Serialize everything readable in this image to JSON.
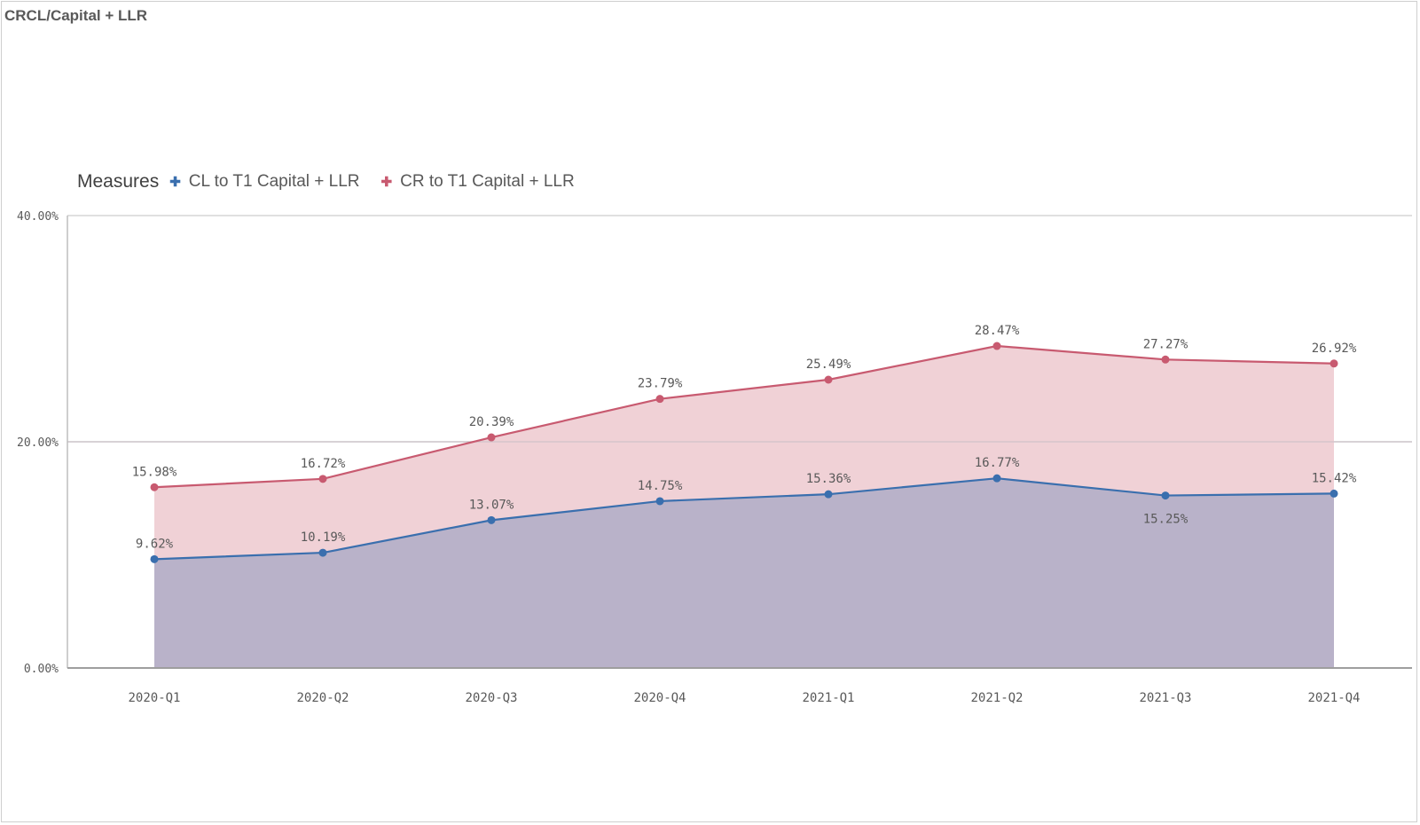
{
  "title": "CRCL/Capital + LLR",
  "legend": {
    "title": "Measures",
    "items": [
      {
        "label": "CL to T1 Capital + LLR",
        "color": "#3a6fae",
        "icon": "plus-marker"
      },
      {
        "label": "CR to T1 Capital + LLR",
        "color": "#c85a70",
        "icon": "plus-marker"
      }
    ],
    "placement": "top-left"
  },
  "chart_data": {
    "type": "area",
    "categories": [
      "2020-Q1",
      "2020-Q2",
      "2020-Q3",
      "2020-Q4",
      "2021-Q1",
      "2021-Q2",
      "2021-Q3",
      "2021-Q4"
    ],
    "series": [
      {
        "name": "CL to T1 Capital + LLR",
        "values": [
          9.62,
          10.19,
          13.07,
          14.75,
          15.36,
          16.77,
          15.25,
          15.42
        ],
        "labels": [
          "9.62%",
          "10.19%",
          "13.07%",
          "14.75%",
          "15.36%",
          "16.77%",
          "15.25%",
          "15.42%"
        ],
        "line_color": "#3a6fae",
        "fill_color": "#b9b2c9"
      },
      {
        "name": "CR to T1 Capital + LLR",
        "values": [
          15.98,
          16.72,
          20.39,
          23.79,
          25.49,
          28.47,
          27.27,
          26.92
        ],
        "labels": [
          "15.98%",
          "16.72%",
          "20.39%",
          "23.79%",
          "25.49%",
          "28.47%",
          "27.27%",
          "26.92%"
        ],
        "line_color": "#c85a70",
        "fill_color": "#f0d1d6"
      }
    ],
    "ylim": [
      0,
      40
    ],
    "yticks": [
      "0.00%",
      "20.00%",
      "40.00%"
    ],
    "grid": true
  }
}
